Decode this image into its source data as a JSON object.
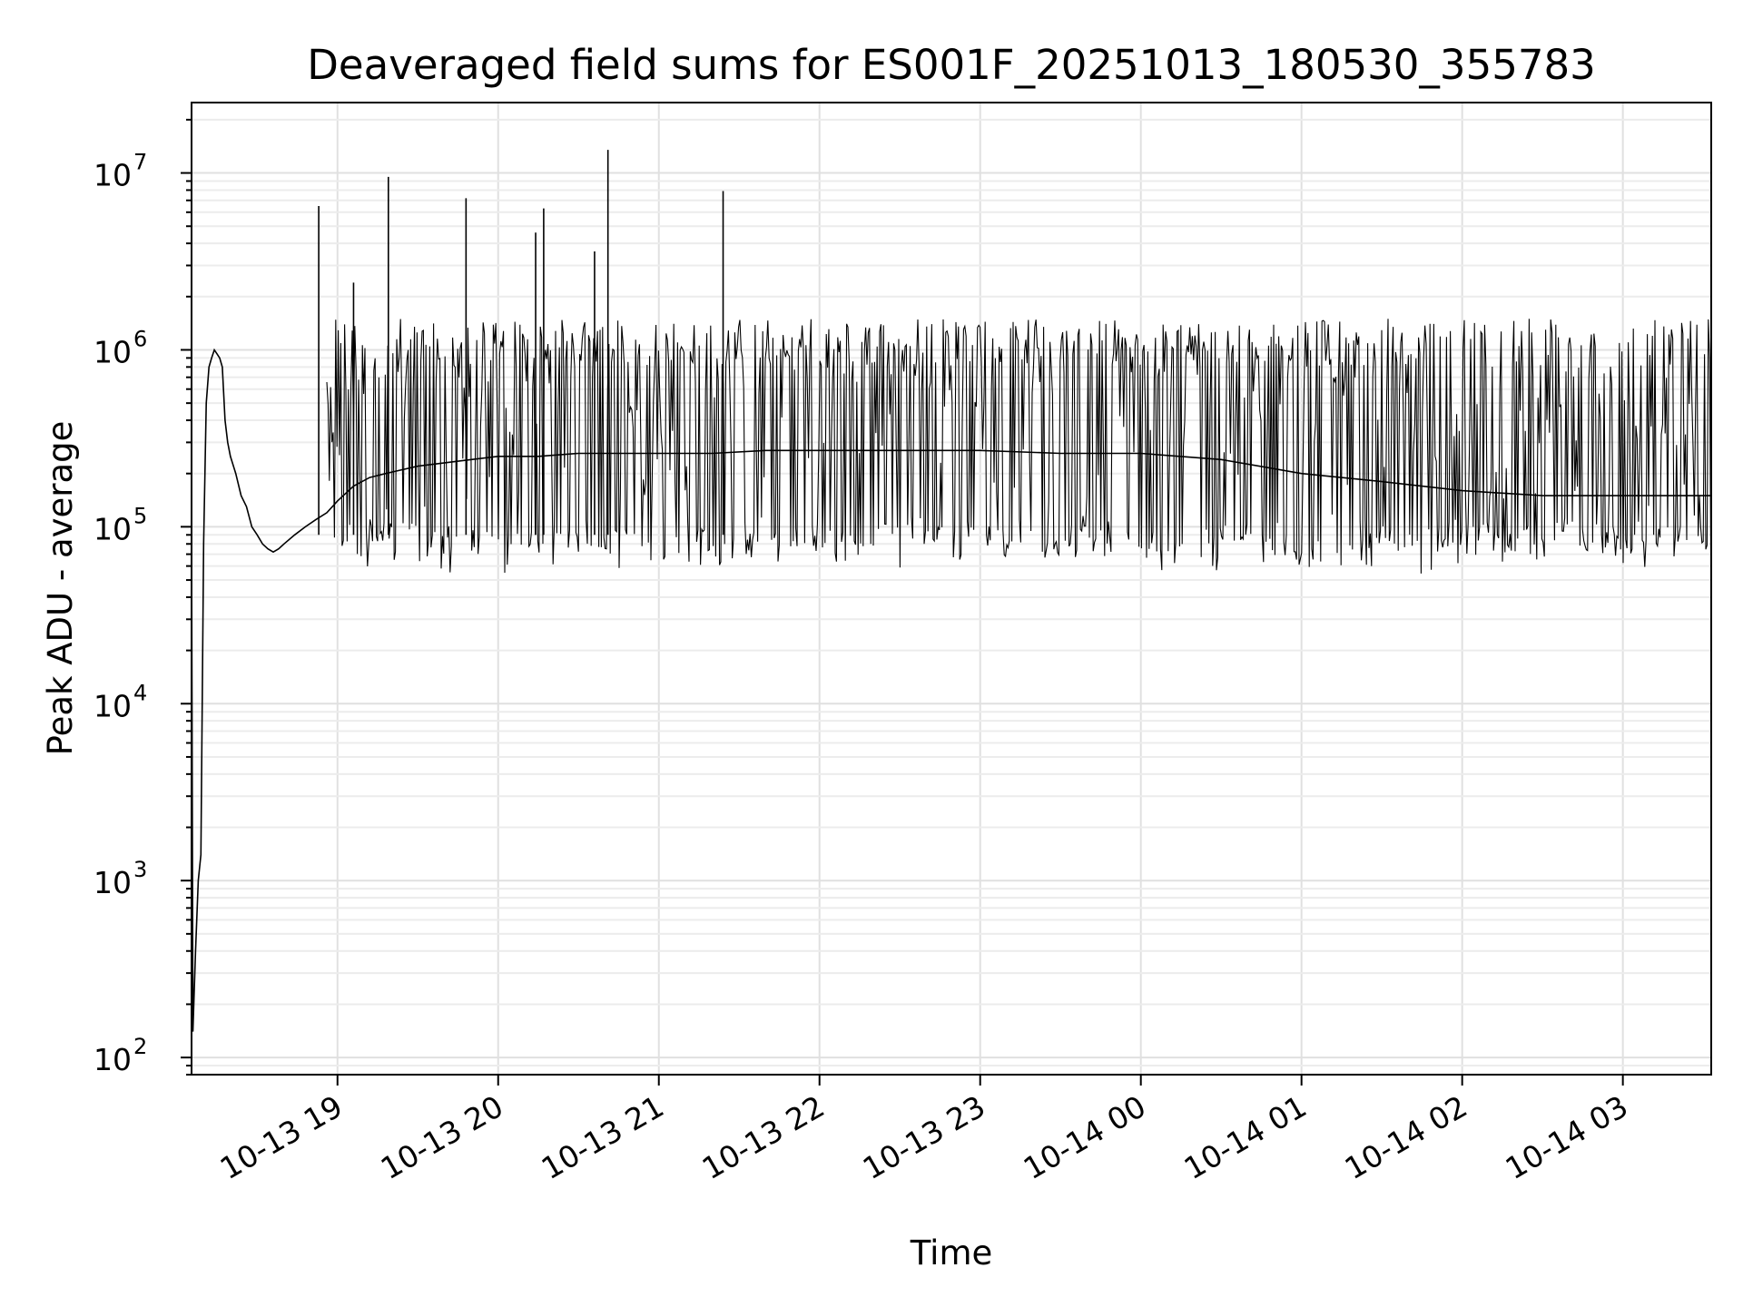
{
  "chart_data": {
    "type": "line",
    "title": "Deaveraged field sums for ES001F_20251013_180530_355783",
    "xlabel": "Time",
    "ylabel": "Peak ADU - average",
    "xlim": [
      "2025-10-13 18:05:30",
      "2025-10-14 03:33:00"
    ],
    "ylim": [
      80,
      25000000
    ],
    "yscale": "log",
    "grid": true,
    "line_color": "#000000",
    "x_ticks": [
      {
        "time": "2025-10-13 19:00",
        "label": "10-13 19"
      },
      {
        "time": "2025-10-13 20:00",
        "label": "10-13 20"
      },
      {
        "time": "2025-10-13 21:00",
        "label": "10-13 21"
      },
      {
        "time": "2025-10-13 22:00",
        "label": "10-13 22"
      },
      {
        "time": "2025-10-13 23:00",
        "label": "10-13 23"
      },
      {
        "time": "2025-10-14 00:00",
        "label": "10-14 00"
      },
      {
        "time": "2025-10-14 01:00",
        "label": "10-14 01"
      },
      {
        "time": "2025-10-14 02:00",
        "label": "10-14 02"
      },
      {
        "time": "2025-10-14 03:00",
        "label": "10-14 03"
      }
    ],
    "y_ticks": [
      {
        "value": 100,
        "base": "10",
        "exp": "2"
      },
      {
        "value": 1000,
        "base": "10",
        "exp": "3"
      },
      {
        "value": 10000,
        "base": "10",
        "exp": "4"
      },
      {
        "value": 100000,
        "base": "10",
        "exp": "5"
      },
      {
        "value": 1000000,
        "base": "10",
        "exp": "6"
      },
      {
        "value": 10000000,
        "base": "10",
        "exp": "7"
      }
    ],
    "series": [
      {
        "x": [
          "2025-10-13 18:05:30",
          "2025-10-13 18:06:00",
          "2025-10-13 18:07:00",
          "2025-10-13 18:08:00",
          "2025-10-13 18:09:00",
          "2025-10-13 18:10:00",
          "2025-10-13 18:11:00",
          "2025-10-13 18:12:00",
          "2025-10-13 18:13:00",
          "2025-10-13 18:14:00",
          "2025-10-13 18:15:00",
          "2025-10-13 18:16:00",
          "2025-10-13 18:17:00",
          "2025-10-13 18:18:00",
          "2025-10-13 18:19:00",
          "2025-10-13 18:20:00",
          "2025-10-13 18:22:00",
          "2025-10-13 18:24:00",
          "2025-10-13 18:26:00",
          "2025-10-13 18:28:00",
          "2025-10-13 18:30:00",
          "2025-10-13 18:32:00",
          "2025-10-13 18:34:00",
          "2025-10-13 18:36:00",
          "2025-10-13 18:38:00",
          "2025-10-13 18:40:00",
          "2025-10-13 18:44:00",
          "2025-10-13 18:48:00",
          "2025-10-13 18:52:00",
          "2025-10-13 18:56:00",
          "2025-10-13 19:00:00",
          "2025-10-13 19:06:00",
          "2025-10-13 19:12:00",
          "2025-10-13 19:18:00",
          "2025-10-13 19:24:00",
          "2025-10-13 19:30:00",
          "2025-10-13 19:40:00",
          "2025-10-13 19:50:00",
          "2025-10-13 20:00:00",
          "2025-10-13 20:15:00",
          "2025-10-13 20:30:00",
          "2025-10-13 20:45:00",
          "2025-10-13 21:00:00",
          "2025-10-13 21:20:00",
          "2025-10-13 21:40:00",
          "2025-10-13 22:00:00",
          "2025-10-13 22:30:00",
          "2025-10-13 23:00:00",
          "2025-10-13 23:30:00",
          "2025-10-14 00:00:00",
          "2025-10-14 00:30:00",
          "2025-10-14 01:00:00",
          "2025-10-14 01:30:00",
          "2025-10-14 02:00:00",
          "2025-10-14 02:30:00",
          "2025-10-14 03:00:00",
          "2025-10-14 03:33:00"
        ],
        "y": [
          100000,
          140,
          400,
          1000,
          1400,
          80000,
          500000,
          800000,
          900000,
          1000000,
          950000,
          900000,
          800000,
          400000,
          300000,
          250000,
          200000,
          150000,
          130000,
          100000,
          90000,
          80000,
          75000,
          72000,
          75000,
          80000,
          90000,
          100000,
          110000,
          120000,
          140000,
          170000,
          190000,
          200000,
          210000,
          220000,
          230000,
          240000,
          250000,
          250000,
          260000,
          260000,
          260000,
          260000,
          270000,
          270000,
          270000,
          270000,
          260000,
          260000,
          240000,
          200000,
          180000,
          160000,
          150000,
          150000,
          150000
        ]
      }
    ]
  }
}
